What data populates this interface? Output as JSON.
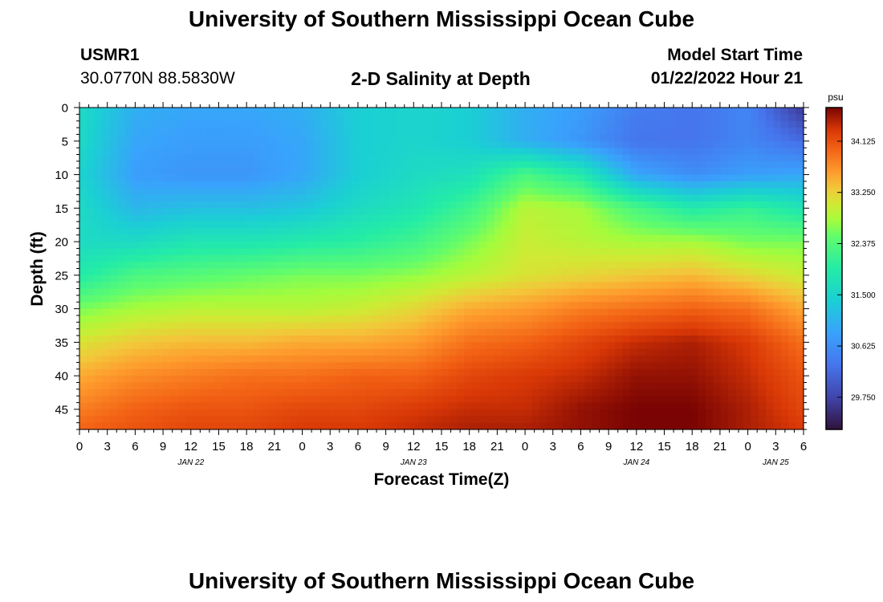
{
  "header": {
    "title": "University of Southern Mississippi Ocean Cube",
    "station_id": "USMR1",
    "station_coords": "30.0770N  88.5830W",
    "plot_title": "2-D Salinity at Depth",
    "model_start_label": "Model Start Time",
    "model_start_value": "01/22/2022 Hour 21"
  },
  "footer": {
    "title": "University of Southern Mississippi Ocean Cube"
  },
  "chart_data": {
    "type": "heatmap",
    "title": "2-D Salinity at Depth",
    "xlabel": "Forecast Time(Z)",
    "ylabel": "Depth (ft)",
    "x_tick_labels": [
      "0",
      "3",
      "6",
      "9",
      "12",
      "15",
      "18",
      "21",
      "0",
      "3",
      "6",
      "9",
      "12",
      "15",
      "18",
      "21",
      "0",
      "3",
      "6",
      "9",
      "12",
      "15",
      "18",
      "21",
      "0",
      "3",
      "6"
    ],
    "x_day_labels": [
      {
        "label": "JAN 22",
        "tick_index": 4
      },
      {
        "label": "JAN 23",
        "tick_index": 12
      },
      {
        "label": "JAN 24",
        "tick_index": 20
      },
      {
        "label": "JAN 25",
        "tick_index": 25
      }
    ],
    "x_range_hours": [
      0,
      78
    ],
    "y_tick_labels": [
      "0",
      "5",
      "10",
      "15",
      "20",
      "25",
      "30",
      "35",
      "40",
      "45"
    ],
    "y_range_ft": [
      0,
      48
    ],
    "y_inverted": true,
    "colorbar": {
      "unit": "psu",
      "tick_labels": [
        "34.125",
        "33.250",
        "32.375",
        "31.500",
        "30.625",
        "29.750"
      ],
      "range": [
        29.2,
        34.7
      ]
    },
    "value_grid_note": "salinity psu; rows = depth ft, cols = forecast hour",
    "grid_x_hours": [
      0,
      6,
      12,
      18,
      24,
      30,
      36,
      42,
      48,
      54,
      60,
      66,
      72,
      78
    ],
    "grid_y_ft": [
      0,
      5,
      10,
      15,
      20,
      25,
      30,
      35,
      40,
      45,
      48
    ],
    "values": [
      [
        31.6,
        31.0,
        30.9,
        30.9,
        31.0,
        31.4,
        31.5,
        31.4,
        31.0,
        30.8,
        30.4,
        30.3,
        30.5,
        29.6
      ],
      [
        31.6,
        30.9,
        30.8,
        30.8,
        30.9,
        31.4,
        31.5,
        31.4,
        31.0,
        30.7,
        30.3,
        30.3,
        30.5,
        30.2
      ],
      [
        31.5,
        30.8,
        30.7,
        30.7,
        30.9,
        31.4,
        31.6,
        31.7,
        32.3,
        31.9,
        30.9,
        30.6,
        30.8,
        30.9
      ],
      [
        31.6,
        31.1,
        31.2,
        31.2,
        31.3,
        31.6,
        31.8,
        32.2,
        32.9,
        32.8,
        32.3,
        31.9,
        32.1,
        31.8
      ],
      [
        31.6,
        31.6,
        31.8,
        31.8,
        31.9,
        32.0,
        32.2,
        32.6,
        33.0,
        32.9,
        32.8,
        32.8,
        32.6,
        32.6
      ],
      [
        31.9,
        32.3,
        32.4,
        32.5,
        32.6,
        32.6,
        32.7,
        32.9,
        33.1,
        33.2,
        33.3,
        33.4,
        33.2,
        33.0
      ],
      [
        32.6,
        32.8,
        32.9,
        32.9,
        32.9,
        33.0,
        33.2,
        33.5,
        33.6,
        33.8,
        33.9,
        34.0,
        33.9,
        33.5
      ],
      [
        33.1,
        33.3,
        33.4,
        33.4,
        33.5,
        33.5,
        33.6,
        33.9,
        34.0,
        34.2,
        34.4,
        34.5,
        34.3,
        33.9
      ],
      [
        33.5,
        33.7,
        33.8,
        33.9,
        33.9,
        34.0,
        34.0,
        34.2,
        34.3,
        34.4,
        34.6,
        34.6,
        34.4,
        34.1
      ],
      [
        33.8,
        34.0,
        34.1,
        34.1,
        34.2,
        34.2,
        34.3,
        34.4,
        34.4,
        34.6,
        34.7,
        34.7,
        34.5,
        34.2
      ],
      [
        34.0,
        34.1,
        34.2,
        34.2,
        34.3,
        34.3,
        34.4,
        34.5,
        34.5,
        34.6,
        34.7,
        34.7,
        34.5,
        34.3
      ]
    ]
  }
}
